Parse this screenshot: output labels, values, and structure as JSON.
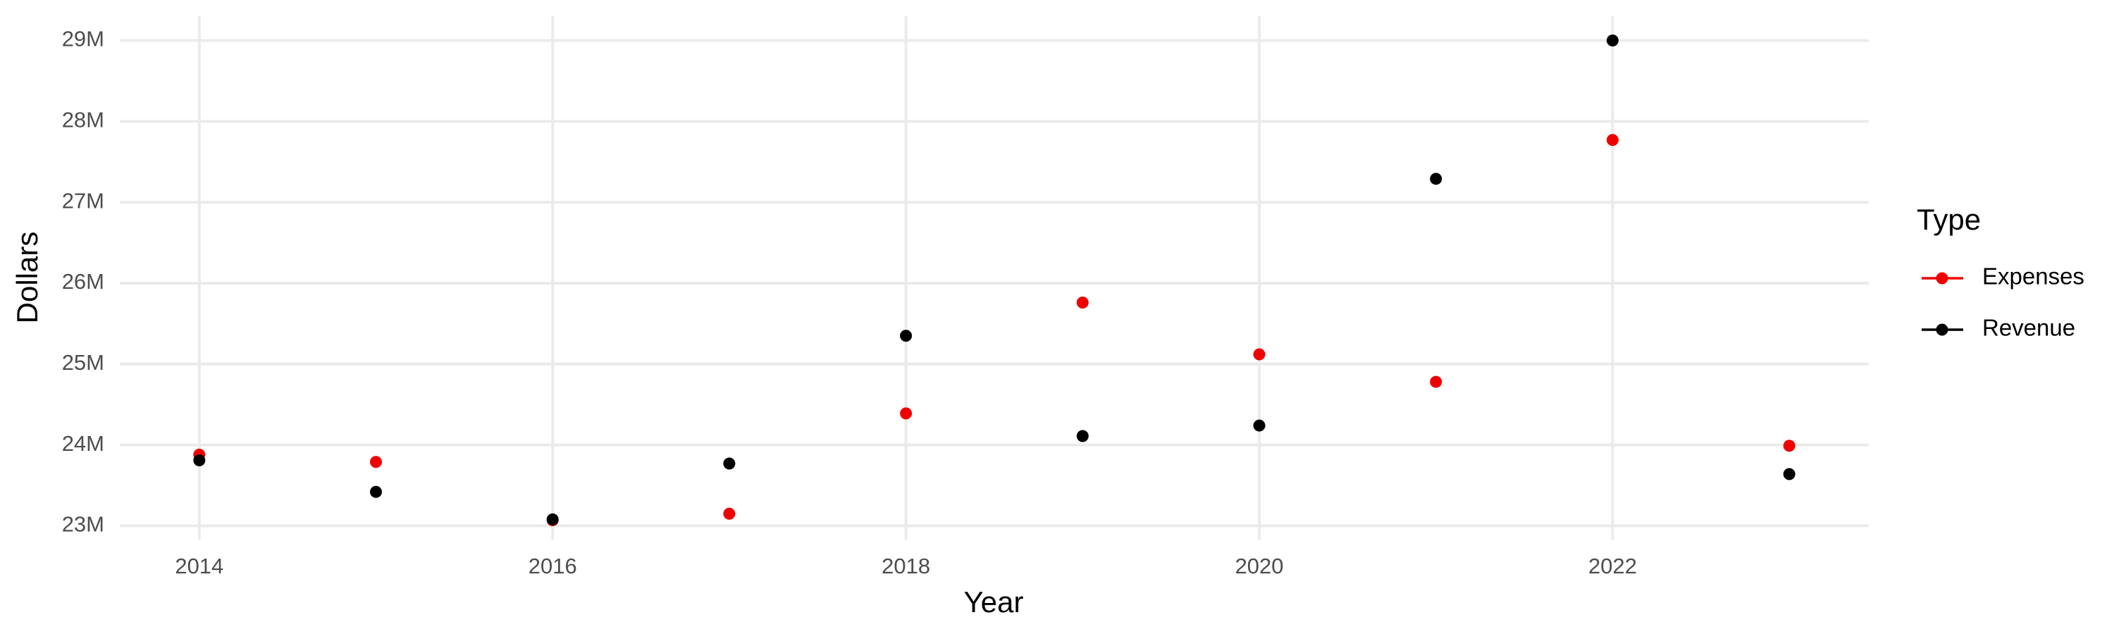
{
  "chart_data": {
    "type": "line",
    "x_label": "Year",
    "y_label": "Dollars",
    "legend_title": "Type",
    "legend": "right",
    "grid": true,
    "x": [
      2014,
      2015,
      2016,
      2017,
      2018,
      2019,
      2020,
      2021,
      2022,
      2023
    ],
    "series": [
      {
        "name": "Expenses",
        "color": "#ee0000",
        "values": [
          23880000,
          23790000,
          23070000,
          23150000,
          24390000,
          25760000,
          25120000,
          24780000,
          27770000,
          23990000
        ]
      },
      {
        "name": "Revenue",
        "color": "#000000",
        "values": [
          23810000,
          23420000,
          23080000,
          23770000,
          25350000,
          24110000,
          24240000,
          27290000,
          29000000,
          23640000
        ]
      }
    ],
    "xlim": [
      2013.55,
      2023.45
    ],
    "xticks": [
      2014,
      2016,
      2018,
      2020,
      2022
    ],
    "ylim": [
      22830000,
      29300000
    ],
    "yticks": [
      {
        "value": 23000000,
        "label": "23M"
      },
      {
        "value": 24000000,
        "label": "24M"
      },
      {
        "value": 25000000,
        "label": "25M"
      },
      {
        "value": 26000000,
        "label": "26M"
      },
      {
        "value": 27000000,
        "label": "27M"
      },
      {
        "value": 28000000,
        "label": "28M"
      },
      {
        "value": 29000000,
        "label": "29M"
      }
    ]
  }
}
